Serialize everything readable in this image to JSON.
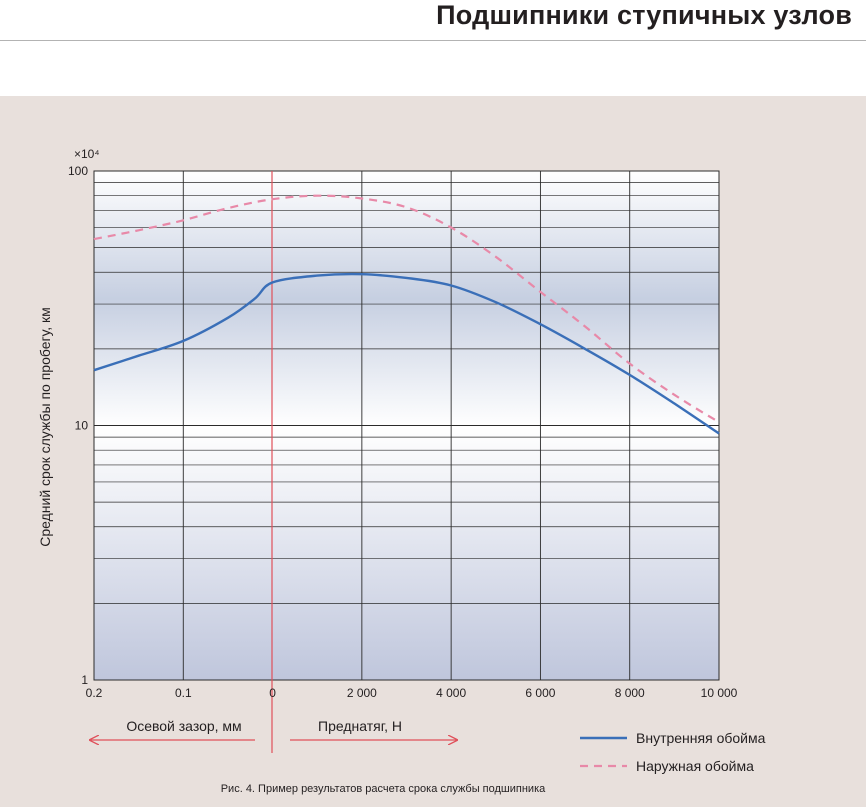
{
  "header": {
    "title": "Подшипники ступичных узлов"
  },
  "figure": {
    "caption": "Рис. 4. Пример результатов расчета срока службы подшипника",
    "regions": {
      "left": "Осевой зазор, мм",
      "right": "Преднатяг, Н"
    }
  },
  "colors": {
    "inner_ring": "#3a6fb8",
    "outer_ring": "#e889a8",
    "divider": "#e0505a",
    "arrow": "#e0505a",
    "panel": "#e8e0dc",
    "grid": "#2b2b2b"
  },
  "chart_data": {
    "type": "line",
    "title": "",
    "xlabel": "",
    "ylabel": "Средний срок службы по пробегу, км",
    "y_multiplier": "×10⁴",
    "y_scale": "log",
    "ylim": [
      1,
      100
    ],
    "y_tick_labels": [
      "1",
      "10",
      "100"
    ],
    "x_ticks": [
      "0.2",
      "0.1",
      "0",
      "2 000",
      "4 000",
      "6 000",
      "8 000",
      "10 000"
    ],
    "x_note": "composite axis: axial clearance 0.2–0 mm (left), preload 0–10 000 N (right)",
    "grid": true,
    "legend_position": "bottom-right",
    "series": [
      {
        "name": "Внутренняя обойма",
        "style": "solid",
        "points": [
          [
            "0.2",
            16.5
          ],
          [
            "0.15",
            18.8
          ],
          [
            "0.1",
            21.5
          ],
          [
            "0.05",
            26.5
          ],
          [
            "0.02",
            31.5
          ],
          [
            "0",
            36.5
          ],
          [
            "1 000",
            38.8
          ],
          [
            "2 000",
            39.3
          ],
          [
            "3 000",
            38.0
          ],
          [
            "4 000",
            35.5
          ],
          [
            "5 000",
            30.5
          ],
          [
            "6 000",
            25.0
          ],
          [
            "7 000",
            20.0
          ],
          [
            "8 000",
            15.8
          ],
          [
            "9 000",
            12.2
          ],
          [
            "10 000",
            9.3
          ]
        ]
      },
      {
        "name": "Наружная обойма",
        "style": "dashed",
        "points": [
          [
            "0.2",
            54
          ],
          [
            "0.15",
            58.5
          ],
          [
            "0.1",
            64
          ],
          [
            "0.05",
            71.5
          ],
          [
            "0",
            77.5
          ],
          [
            "1 000",
            80
          ],
          [
            "2 000",
            78
          ],
          [
            "3 000",
            72
          ],
          [
            "4 000",
            60
          ],
          [
            "5 000",
            46
          ],
          [
            "6 000",
            33.5
          ],
          [
            "7 000",
            24.5
          ],
          [
            "8 000",
            17.5
          ],
          [
            "9 000",
            13.2
          ],
          [
            "10 000",
            10.3
          ]
        ]
      }
    ]
  }
}
